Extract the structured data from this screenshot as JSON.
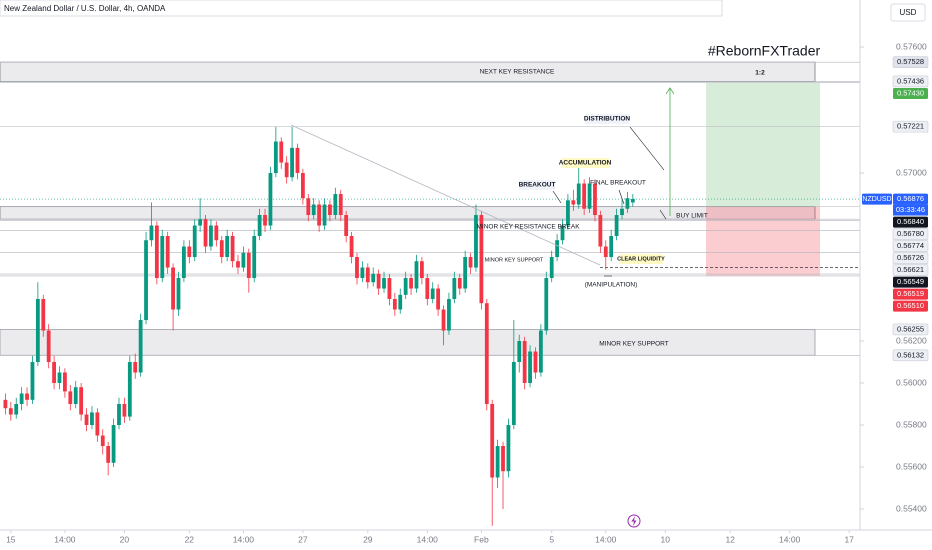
{
  "chart_data": {
    "type": "candlestick",
    "header": "New Zealand Dollar / U.S. Dollar, 4h, OANDA",
    "currency": "USD",
    "symbol": "NZDUSD",
    "countdown": "03:33:46",
    "watermark": "#RebornFXTrader",
    "annotations": [
      "NEXT KEY RESISTANCE",
      "1:2",
      "DISTRIBUTION",
      "ACCUMULATION",
      "BREAKOUT",
      "FINAL BREAKOUT",
      "BUY LIMIT",
      "MINOR KEY RESISTANCE BREAK",
      "MINOR KEY SUPPORT",
      "CLEAR LIQUIDITY",
      "(MANIPULATION)",
      "MINOR KEY SUPPORT"
    ],
    "up_color": "#089981",
    "down_color": "#f23645",
    "xlim": [
      -1,
      158
    ],
    "ylim": [
      0.553,
      0.57824
    ],
    "xticks": [
      {
        "value": 1,
        "label": "15"
      },
      {
        "value": 11,
        "label": "14:00"
      },
      {
        "value": 22,
        "label": "20"
      },
      {
        "value": 34,
        "label": "22"
      },
      {
        "value": 44,
        "label": "14:00"
      },
      {
        "value": 55,
        "label": "27"
      },
      {
        "value": 67,
        "label": "29"
      },
      {
        "value": 78,
        "label": "14:00"
      },
      {
        "value": 88,
        "label": "Feb"
      },
      {
        "value": 101,
        "label": "5"
      },
      {
        "value": 111,
        "label": "14:00"
      },
      {
        "value": 122,
        "label": "10"
      },
      {
        "value": 134,
        "label": "12"
      },
      {
        "value": 145,
        "label": "14:00"
      },
      {
        "value": 156,
        "label": "17"
      }
    ],
    "yticks": [
      {
        "value": 0.576,
        "label": "0.57600"
      },
      {
        "value": 0.57,
        "label": "0.57000"
      },
      {
        "value": 0.562,
        "label": "0.56200"
      },
      {
        "value": 0.56,
        "label": "0.56000"
      },
      {
        "value": 0.558,
        "label": "0.55800"
      },
      {
        "value": 0.556,
        "label": "0.55600"
      },
      {
        "value": 0.554,
        "label": "0.55400"
      }
    ],
    "levels": [
      {
        "value": 0.57528,
        "label": "0.57528",
        "color": "#e0e3eb"
      },
      {
        "value": 0.57436,
        "label": "0.57436",
        "color": "#eceff4"
      },
      {
        "value": 0.5743,
        "label": "0.57430",
        "color": "#4caf50"
      },
      {
        "value": 0.57221,
        "label": "0.57221",
        "color": "#eceff4"
      },
      {
        "value": 0.56876,
        "label": "0.56876",
        "color": "#2962ff"
      },
      {
        "value": 0.5684,
        "label": "0.56840",
        "color": "#131722"
      },
      {
        "value": 0.5678,
        "label": "0.56780",
        "color": "#eceff4"
      },
      {
        "value": 0.56774,
        "label": "0.56774",
        "color": "#eceff4"
      },
      {
        "value": 0.56726,
        "label": "0.56726",
        "color": "#eceff4"
      },
      {
        "value": 0.56621,
        "label": "0.56621",
        "color": "#eceff4"
      },
      {
        "value": 0.56549,
        "label": "0.56549",
        "color": "#131722"
      },
      {
        "value": 0.56519,
        "label": "0.56519",
        "color": "#f23645"
      },
      {
        "value": 0.5651,
        "label": "0.56510",
        "color": "#f23645"
      },
      {
        "value": 0.56255,
        "label": "0.56255",
        "color": "#eceff4"
      },
      {
        "value": 0.56132,
        "label": "0.56132",
        "color": "#eceff4"
      }
    ],
    "x": [
      0,
      1,
      2,
      3,
      4,
      5,
      6,
      7,
      8,
      9,
      10,
      11,
      12,
      13,
      14,
      15,
      16,
      17,
      18,
      19,
      20,
      21,
      22,
      23,
      24,
      25,
      26,
      27,
      28,
      29,
      30,
      31,
      32,
      33,
      34,
      35,
      36,
      37,
      38,
      39,
      40,
      41,
      42,
      43,
      44,
      45,
      46,
      47,
      48,
      49,
      50,
      51,
      52,
      53,
      54,
      55,
      56,
      57,
      58,
      59,
      60,
      61,
      62,
      63,
      64,
      65,
      66,
      67,
      68,
      69,
      70,
      71,
      72,
      73,
      74,
      75,
      76,
      77,
      78,
      79,
      80,
      81,
      82,
      83,
      84,
      85,
      86,
      87,
      88,
      89,
      90,
      91,
      92,
      93,
      94,
      95,
      96,
      97,
      98,
      99,
      100,
      101,
      102,
      103,
      104,
      105,
      106,
      107,
      108,
      109,
      110,
      111,
      112,
      113,
      114,
      115,
      116
    ],
    "open": [
      0.5592,
      0.5588,
      0.5585,
      0.559,
      0.5595,
      0.5592,
      0.561,
      0.564,
      0.5625,
      0.561,
      0.56,
      0.5605,
      0.5596,
      0.559,
      0.5598,
      0.5585,
      0.558,
      0.5586,
      0.5575,
      0.557,
      0.5562,
      0.558,
      0.559,
      0.5584,
      0.561,
      0.5605,
      0.563,
      0.5668,
      0.5675,
      0.565,
      0.567,
      0.5655,
      0.5635,
      0.565,
      0.5665,
      0.566,
      0.5675,
      0.5678,
      0.5665,
      0.5675,
      0.5668,
      0.566,
      0.567,
      0.5658,
      0.5655,
      0.5662,
      0.565,
      0.567,
      0.568,
      0.5675,
      0.57,
      0.5715,
      0.5705,
      0.5698,
      0.5712,
      0.57,
      0.5688,
      0.568,
      0.5685,
      0.5675,
      0.5685,
      0.568,
      0.569,
      0.568,
      0.567,
      0.566,
      0.565,
      0.5655,
      0.5648,
      0.5652,
      0.5645,
      0.565,
      0.564,
      0.5635,
      0.5642,
      0.565,
      0.5645,
      0.5658,
      0.565,
      0.564,
      0.5645,
      0.5635,
      0.5625,
      0.564,
      0.565,
      0.5645,
      0.566,
      0.5655,
      0.568,
      0.5638,
      0.559,
      0.5555,
      0.557,
      0.5558,
      0.558,
      0.561,
      0.562,
      0.56,
      0.5615,
      0.5605,
      0.5625,
      0.565,
      0.566,
      0.5668,
      0.5675,
      0.5687,
      0.5685,
      0.5695,
      0.5683,
      0.5695,
      0.568,
      0.5665,
      0.566,
      0.567,
      0.568,
      0.5683,
      0.5686
    ],
    "high": [
      0.5595,
      0.5591,
      0.5593,
      0.5598,
      0.5598,
      0.5613,
      0.5648,
      0.5642,
      0.5628,
      0.5613,
      0.5608,
      0.5607,
      0.5599,
      0.5601,
      0.56,
      0.5588,
      0.5589,
      0.5588,
      0.5578,
      0.5572,
      0.5583,
      0.5593,
      0.5593,
      0.5613,
      0.5614,
      0.5633,
      0.5672,
      0.5686,
      0.5677,
      0.5673,
      0.5672,
      0.5657,
      0.5653,
      0.5668,
      0.5668,
      0.5678,
      0.5688,
      0.568,
      0.5678,
      0.5677,
      0.567,
      0.5673,
      0.5672,
      0.5661,
      0.5665,
      0.5664,
      0.5673,
      0.5683,
      0.5683,
      0.5703,
      0.5722,
      0.5717,
      0.5708,
      0.5722,
      0.5714,
      0.5702,
      0.569,
      0.5688,
      0.5687,
      0.5688,
      0.5687,
      0.5693,
      0.5692,
      0.5682,
      0.5672,
      0.5662,
      0.5658,
      0.5657,
      0.5655,
      0.5654,
      0.5653,
      0.5652,
      0.5643,
      0.5645,
      0.5653,
      0.5652,
      0.5661,
      0.566,
      0.5652,
      0.5648,
      0.5647,
      0.5637,
      0.5643,
      0.5653,
      0.5652,
      0.5663,
      0.5662,
      0.5685,
      0.5682,
      0.564,
      0.5592,
      0.5573,
      0.5572,
      0.5583,
      0.563,
      0.5623,
      0.5622,
      0.5618,
      0.5617,
      0.5628,
      0.5653,
      0.5663,
      0.5671,
      0.5678,
      0.569,
      0.5692,
      0.5705,
      0.5697,
      0.5698,
      0.5697,
      0.5682,
      0.5668,
      0.5673,
      0.5683,
      0.5687,
      0.5691,
      0.569
    ],
    "low": [
      0.5585,
      0.5582,
      0.5583,
      0.5587,
      0.5589,
      0.559,
      0.5608,
      0.5622,
      0.5607,
      0.5597,
      0.5597,
      0.5593,
      0.5587,
      0.5588,
      0.5582,
      0.5577,
      0.5578,
      0.5572,
      0.5566,
      0.5556,
      0.556,
      0.5578,
      0.5581,
      0.5582,
      0.5602,
      0.5603,
      0.5628,
      0.5665,
      0.5647,
      0.5648,
      0.5652,
      0.5625,
      0.5632,
      0.5648,
      0.5657,
      0.5658,
      0.5672,
      0.5662,
      0.5663,
      0.5665,
      0.5657,
      0.5658,
      0.5655,
      0.5652,
      0.5653,
      0.5643,
      0.5648,
      0.5668,
      0.5672,
      0.5673,
      0.5698,
      0.5702,
      0.5695,
      0.5696,
      0.5697,
      0.5685,
      0.5677,
      0.5678,
      0.5672,
      0.5673,
      0.5677,
      0.5678,
      0.5677,
      0.5667,
      0.5657,
      0.5647,
      0.5648,
      0.5645,
      0.5646,
      0.5642,
      0.5643,
      0.5637,
      0.5632,
      0.5633,
      0.564,
      0.5642,
      0.5643,
      0.5647,
      0.5637,
      0.5638,
      0.5632,
      0.5618,
      0.5623,
      0.5638,
      0.5642,
      0.5643,
      0.5652,
      0.5653,
      0.5635,
      0.5587,
      0.5532,
      0.555,
      0.554,
      0.5555,
      0.5578,
      0.5605,
      0.5597,
      0.5598,
      0.5602,
      0.5603,
      0.5623,
      0.5648,
      0.5658,
      0.5666,
      0.5673,
      0.5682,
      0.5683,
      0.568,
      0.5681,
      0.5677,
      0.5662,
      0.5654,
      0.5658,
      0.5668,
      0.5678,
      0.5681,
      0.5684
    ],
    "close": [
      0.5588,
      0.5585,
      0.559,
      0.5595,
      0.5592,
      0.561,
      0.564,
      0.5625,
      0.561,
      0.56,
      0.5605,
      0.5596,
      0.559,
      0.5598,
      0.5585,
      0.558,
      0.5586,
      0.5575,
      0.557,
      0.5562,
      0.558,
      0.559,
      0.5584,
      0.561,
      0.5605,
      0.563,
      0.5668,
      0.5675,
      0.565,
      0.567,
      0.5655,
      0.5635,
      0.565,
      0.5665,
      0.566,
      0.5675,
      0.5678,
      0.5665,
      0.5675,
      0.5668,
      0.566,
      0.567,
      0.5658,
      0.5655,
      0.5662,
      0.565,
      0.567,
      0.568,
      0.5675,
      0.57,
      0.5715,
      0.5705,
      0.5698,
      0.5712,
      0.57,
      0.5688,
      0.568,
      0.5685,
      0.5675,
      0.5685,
      0.568,
      0.569,
      0.568,
      0.567,
      0.566,
      0.565,
      0.5655,
      0.5648,
      0.5652,
      0.5645,
      0.565,
      0.564,
      0.5635,
      0.5642,
      0.565,
      0.5645,
      0.5658,
      0.565,
      0.564,
      0.5645,
      0.5635,
      0.5625,
      0.564,
      0.565,
      0.5645,
      0.566,
      0.5655,
      0.568,
      0.5638,
      0.559,
      0.5555,
      0.557,
      0.5558,
      0.558,
      0.561,
      0.562,
      0.56,
      0.5615,
      0.5605,
      0.5625,
      0.565,
      0.566,
      0.5668,
      0.5675,
      0.5687,
      0.5685,
      0.5695,
      0.5683,
      0.5695,
      0.568,
      0.5665,
      0.566,
      0.567,
      0.568,
      0.5683,
      0.5688,
      0.56876
    ]
  }
}
